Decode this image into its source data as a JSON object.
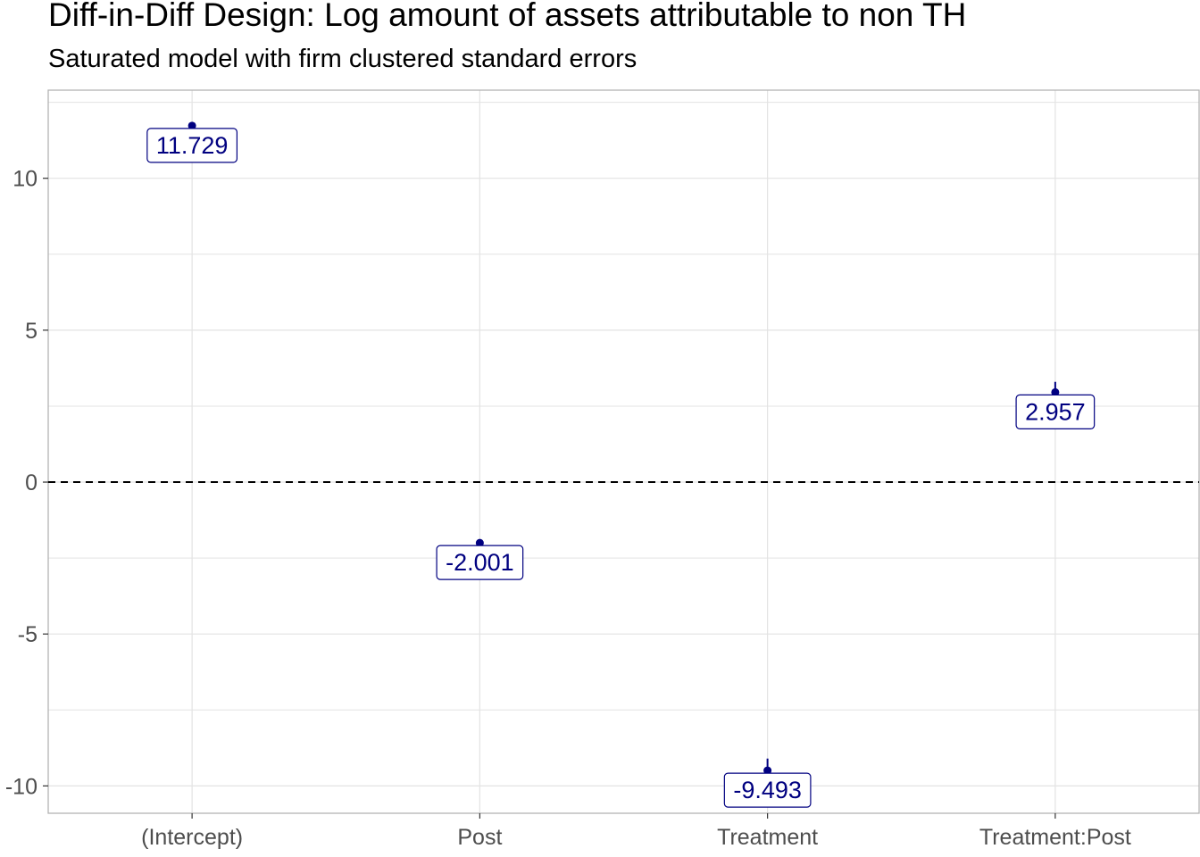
{
  "chart_data": {
    "type": "scatter",
    "title": "Diff-in-Diff Design: Log amount of assets attributable to non TH",
    "subtitle": "Saturated model with firm clustered standard errors",
    "xlabel": "",
    "ylabel": "",
    "categories": [
      "(Intercept)",
      "Post",
      "Treatment",
      "Treatment:Post"
    ],
    "values": [
      11.729,
      -2.001,
      -9.493,
      2.957
    ],
    "intervals": [
      [
        11.65,
        11.81
      ],
      [
        -2.12,
        -1.88
      ],
      [
        -9.9,
        -9.1
      ],
      [
        2.6,
        3.3
      ]
    ],
    "labels": [
      "11.729",
      "-2.001",
      "-9.493",
      "2.957"
    ],
    "ylim": [
      -10.9,
      12.9
    ],
    "yticks": [
      -10,
      -5,
      0,
      5,
      10
    ],
    "ytick_labels": [
      "-10",
      "-5",
      "0",
      "5",
      "10"
    ],
    "reference_line": 0,
    "grid": true,
    "colors": {
      "point": "#000080",
      "label_text": "#000080",
      "label_border": "#000080",
      "reference_line": "#000000",
      "grid": "#e3e3e3",
      "panel_border": "#b3b3b3"
    }
  }
}
